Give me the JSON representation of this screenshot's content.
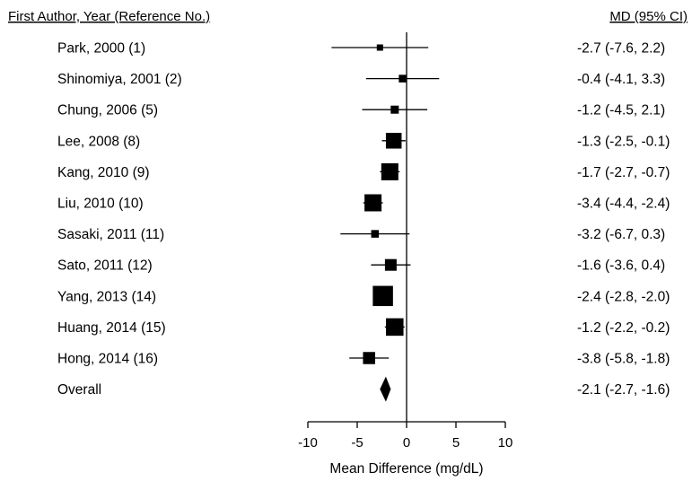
{
  "chart_data": {
    "type": "forest",
    "header_left": "First Author, Year (Reference No.)",
    "header_right": "MD (95% CI)",
    "xlabel": "Mean Difference (mg/dL)",
    "xlim": [
      -10,
      10
    ],
    "xticks": [
      -10,
      -5,
      0,
      5,
      10
    ],
    "reference_line": 0,
    "studies": [
      {
        "label": "Park, 2000 (1)",
        "md": -2.7,
        "lo": -7.6,
        "hi": 2.2,
        "ci_text": "-2.7  (-7.6, 2.2)",
        "weight": 0.3
      },
      {
        "label": "Shinomiya, 2001 (2)",
        "md": -0.4,
        "lo": -4.1,
        "hi": 3.3,
        "ci_text": "-0.4  (-4.1, 3.3)",
        "weight": 0.45
      },
      {
        "label": "Chung, 2006 (5)",
        "md": -1.2,
        "lo": -4.5,
        "hi": 2.1,
        "ci_text": "-1.2  (-4.5, 2.1)",
        "weight": 0.5
      },
      {
        "label": "Lee, 2008 (8)",
        "md": -1.3,
        "lo": -2.5,
        "hi": -0.1,
        "ci_text": "-1.3  (-2.5, -0.1)",
        "weight": 1.35
      },
      {
        "label": "Kang, 2010 (9)",
        "md": -1.7,
        "lo": -2.7,
        "hi": -0.7,
        "ci_text": "-1.7  (-2.7, -0.7)",
        "weight": 1.5
      },
      {
        "label": "Liu, 2010 (10)",
        "md": -3.4,
        "lo": -4.4,
        "hi": -2.4,
        "ci_text": "-3.4  (-4.4, -2.4)",
        "weight": 1.5
      },
      {
        "label": "Sasaki, 2011 (11)",
        "md": -3.2,
        "lo": -6.7,
        "hi": 0.3,
        "ci_text": "-3.2  (-6.7, 0.3)",
        "weight": 0.45
      },
      {
        "label": "Sato, 2011 (12)",
        "md": -1.6,
        "lo": -3.6,
        "hi": 0.4,
        "ci_text": "-1.6  (-3.6, 0.4)",
        "weight": 0.9
      },
      {
        "label": "Yang, 2013 (14)",
        "md": -2.4,
        "lo": -2.8,
        "hi": -2.0,
        "ci_text": "-2.4  (-2.8, -2.0)",
        "weight": 1.85
      },
      {
        "label": "Huang, 2014 (15)",
        "md": -1.2,
        "lo": -2.2,
        "hi": -0.2,
        "ci_text": "-1.2  (-2.2, -0.2)",
        "weight": 1.55
      },
      {
        "label": "Hong, 2014 (16)",
        "md": -3.8,
        "lo": -5.8,
        "hi": -1.8,
        "ci_text": "-3.8  (-5.8, -1.8)",
        "weight": 0.95
      }
    ],
    "overall": {
      "label": "Overall",
      "md": -2.1,
      "lo": -2.7,
      "hi": -1.6,
      "ci_text": "-2.1  (-2.7, -1.6)"
    }
  }
}
